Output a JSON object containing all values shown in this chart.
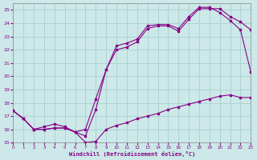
{
  "xlabel": "Windchill (Refroidissement éolien,°C)",
  "background_color": "#cce8e8",
  "grid_color": "#aacfcf",
  "line_color": "#880088",
  "xlim": [
    0,
    23
  ],
  "ylim": [
    15,
    25.5
  ],
  "yticks": [
    15,
    16,
    17,
    18,
    19,
    20,
    21,
    22,
    23,
    24,
    25
  ],
  "xticks": [
    0,
    1,
    2,
    3,
    4,
    5,
    6,
    7,
    8,
    9,
    10,
    11,
    12,
    13,
    14,
    15,
    16,
    17,
    18,
    19,
    20,
    21,
    22,
    23
  ],
  "line1_x": [
    0,
    1,
    2,
    3,
    4,
    5,
    6,
    7,
    8,
    9,
    10,
    11,
    12,
    13,
    14,
    15,
    16,
    17,
    18,
    19,
    20,
    21,
    22,
    23
  ],
  "line1_y": [
    17.4,
    16.8,
    16.0,
    16.0,
    16.1,
    16.1,
    15.8,
    15.0,
    15.1,
    16.0,
    16.3,
    16.5,
    16.8,
    17.0,
    17.2,
    17.5,
    17.7,
    17.9,
    18.1,
    18.3,
    18.5,
    18.6,
    18.4,
    18.4
  ],
  "line2_x": [
    0,
    1,
    2,
    3,
    4,
    5,
    6,
    7,
    8,
    9,
    10,
    11,
    12,
    13,
    14,
    15,
    16,
    17,
    18,
    19,
    20,
    21,
    22,
    23
  ],
  "line2_y": [
    17.4,
    16.8,
    16.0,
    16.0,
    16.1,
    16.1,
    15.8,
    15.5,
    17.5,
    20.5,
    22.3,
    22.5,
    22.8,
    23.8,
    23.9,
    23.9,
    23.6,
    24.5,
    25.2,
    25.2,
    24.8,
    24.2,
    23.5,
    20.3
  ],
  "line3_x": [
    0,
    1,
    2,
    3,
    4,
    5,
    6,
    7,
    8,
    9,
    10,
    11,
    12,
    13,
    14,
    15,
    16,
    17,
    18,
    19,
    20,
    21,
    22,
    23
  ],
  "line3_y": [
    17.4,
    16.8,
    16.0,
    16.2,
    16.4,
    16.2,
    15.8,
    16.0,
    18.3,
    20.5,
    22.0,
    22.2,
    22.6,
    23.6,
    23.8,
    23.8,
    23.4,
    24.3,
    25.1,
    25.1,
    25.1,
    24.5,
    24.1,
    23.5
  ]
}
